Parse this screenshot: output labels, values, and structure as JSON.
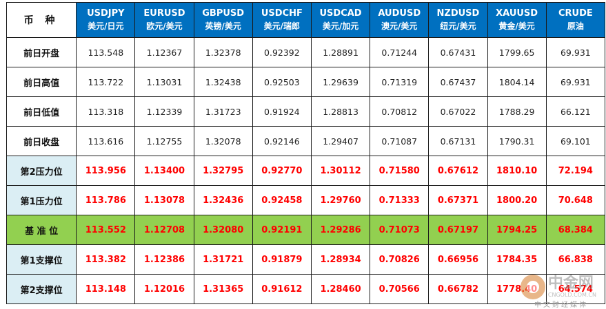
{
  "corner": "币 种",
  "columns": [
    {
      "code": "USDJPY",
      "cn": "美元/日元"
    },
    {
      "code": "EURUSD",
      "cn": "欧元/美元"
    },
    {
      "code": "GBPUSD",
      "cn": "英镑/美元"
    },
    {
      "code": "USDCHF",
      "cn": "美元/瑞郎"
    },
    {
      "code": "USDCAD",
      "cn": "美元/加元"
    },
    {
      "code": "AUDUSD",
      "cn": "澳元/美元"
    },
    {
      "code": "NZDUSD",
      "cn": "纽元/美元"
    },
    {
      "code": "XAUUSD",
      "cn": "黄金/美元"
    },
    {
      "code": "CRUDE",
      "cn": "原油"
    }
  ],
  "rows": [
    {
      "label": "前日开盘",
      "values": [
        "113.548",
        "1.12367",
        "1.32378",
        "0.92392",
        "1.28891",
        "0.71244",
        "0.67431",
        "1799.65",
        "69.931"
      ]
    },
    {
      "label": "前日高值",
      "values": [
        "113.722",
        "1.13031",
        "1.32438",
        "0.92503",
        "1.29639",
        "0.71319",
        "0.67437",
        "1804.14",
        "69.931"
      ]
    },
    {
      "label": "前日低值",
      "values": [
        "113.318",
        "1.12339",
        "1.31723",
        "0.91924",
        "1.28813",
        "0.70812",
        "0.67022",
        "1788.29",
        "66.121"
      ]
    },
    {
      "label": "前日收盘",
      "values": [
        "113.616",
        "1.12755",
        "1.32078",
        "0.92146",
        "1.29407",
        "0.71087",
        "0.67131",
        "1790.31",
        "69.101"
      ]
    },
    {
      "label": "第2压力位",
      "values": [
        "113.956",
        "1.13400",
        "1.32795",
        "0.92770",
        "1.30112",
        "0.71580",
        "0.67612",
        "1810.10",
        "72.194"
      ]
    },
    {
      "label": "第1压力位",
      "values": [
        "113.786",
        "1.13078",
        "1.32436",
        "0.92458",
        "1.29760",
        "0.71333",
        "0.67371",
        "1800.20",
        "70.648"
      ]
    },
    {
      "label": "基 准 位",
      "values": [
        "113.552",
        "1.12708",
        "1.32080",
        "0.92191",
        "1.29286",
        "0.71073",
        "0.67197",
        "1794.25",
        "68.384"
      ]
    },
    {
      "label": "第1支撑位",
      "values": [
        "113.382",
        "1.12386",
        "1.31721",
        "0.91879",
        "1.28934",
        "0.70826",
        "0.66956",
        "1784.35",
        "66.838"
      ]
    },
    {
      "label": "第2支撑位",
      "values": [
        "113.148",
        "1.12016",
        "1.31365",
        "0.91612",
        "1.28460",
        "0.70566",
        "0.66782",
        "1778.40",
        "64.574"
      ]
    }
  ],
  "colors": {
    "header_bg": "#0070c0",
    "level_text": "#ff0000",
    "pivot_bg": "#92d050",
    "level_label_bg": "#dbeef4"
  },
  "watermark": {
    "cn": "中金网",
    "url": "CNGOLD.COM.CN",
    "sub": "中文财经媒体",
    "icon": "cngold-logo-icon"
  }
}
